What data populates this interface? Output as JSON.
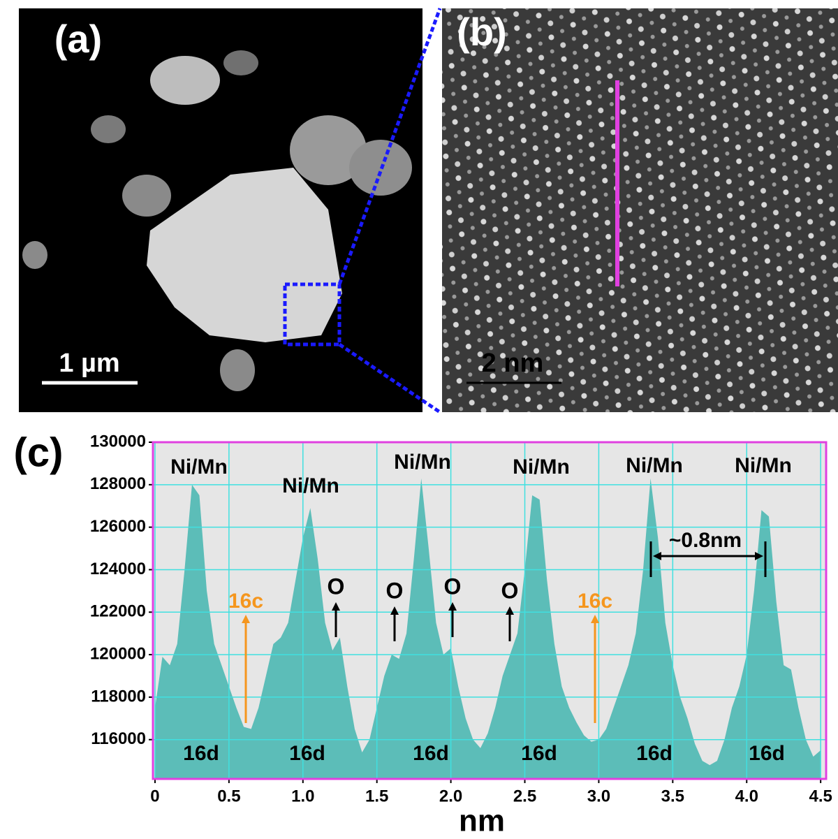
{
  "panels": {
    "a": {
      "label": "(a)",
      "scale_bar": "1 µm"
    },
    "b": {
      "label": "(b)",
      "scale_bar": "2 nm"
    }
  },
  "chart_data": {
    "type": "area",
    "panel_label": "(c)",
    "x_label": "nm",
    "color": "#5cbdb8",
    "x": [
      0,
      0.05,
      0.1,
      0.15,
      0.2,
      0.25,
      0.3,
      0.35,
      0.4,
      0.45,
      0.5,
      0.55,
      0.6,
      0.65,
      0.7,
      0.75,
      0.8,
      0.85,
      0.9,
      0.95,
      1,
      1.05,
      1.1,
      1.15,
      1.2,
      1.25,
      1.3,
      1.35,
      1.4,
      1.45,
      1.5,
      1.55,
      1.6,
      1.65,
      1.7,
      1.75,
      1.8,
      1.85,
      1.9,
      1.95,
      2,
      2.05,
      2.1,
      2.15,
      2.2,
      2.25,
      2.3,
      2.35,
      2.4,
      2.45,
      2.5,
      2.55,
      2.6,
      2.65,
      2.7,
      2.75,
      2.8,
      2.85,
      2.9,
      2.95,
      3,
      3.05,
      3.1,
      3.15,
      3.2,
      3.25,
      3.3,
      3.35,
      3.4,
      3.45,
      3.5,
      3.55,
      3.6,
      3.65,
      3.7,
      3.75,
      3.8,
      3.85,
      3.9,
      3.95,
      4,
      4.05,
      4.1,
      4.15,
      4.2,
      4.25,
      4.3,
      4.35,
      4.4,
      4.45,
      4.5
    ],
    "values": [
      117500,
      119900,
      119500,
      120500,
      124000,
      128000,
      127500,
      123000,
      120500,
      119500,
      118500,
      117500,
      116600,
      116500,
      117500,
      119000,
      120500,
      120800,
      121500,
      123500,
      125500,
      126900,
      124500,
      121500,
      120200,
      120800,
      118500,
      116500,
      115400,
      116000,
      117500,
      119000,
      120000,
      119800,
      121000,
      124500,
      128300,
      125000,
      121500,
      120000,
      120300,
      118500,
      117000,
      116000,
      115600,
      116300,
      117500,
      119000,
      120000,
      121000,
      124000,
      127500,
      127300,
      123500,
      120500,
      118500,
      117500,
      116800,
      116200,
      115900,
      116000,
      116500,
      117500,
      118500,
      119500,
      121000,
      124000,
      128300,
      125500,
      121500,
      119500,
      118000,
      117000,
      115800,
      115000,
      114800,
      115000,
      116000,
      117500,
      118500,
      120000,
      123000,
      126800,
      126500,
      122500,
      119500,
      119300,
      117500,
      116000,
      115200,
      115500
    ],
    "xlim": [
      -0.014,
      4.537
    ],
    "ylim": [
      114150,
      130000
    ],
    "xticks": [
      0,
      0.5,
      {
        "value": 1,
        "label": "1.0"
      },
      1.5,
      {
        "value": 2,
        "label": "2.0"
      },
      2.5,
      {
        "value": 3,
        "label": "3.0"
      },
      3.5,
      {
        "value": 4,
        "label": "4.0"
      },
      4.5
    ],
    "yticks": [
      116000,
      118000,
      120000,
      122000,
      124000,
      126000,
      128000,
      130000
    ],
    "grid": true,
    "annotations": {
      "peaks": [
        "Ni/Mn",
        "Ni/Mn",
        "Ni/Mn",
        "Ni/Mn",
        "Ni/Mn",
        "Ni/Mn"
      ],
      "sites": [
        "16d",
        "16d",
        "16d",
        "16d",
        "16d",
        "16d"
      ],
      "oxygen": [
        "O",
        "O",
        "O",
        "O"
      ],
      "vacant": [
        "16c",
        "16c"
      ],
      "spacing": "~0.8nm"
    }
  }
}
